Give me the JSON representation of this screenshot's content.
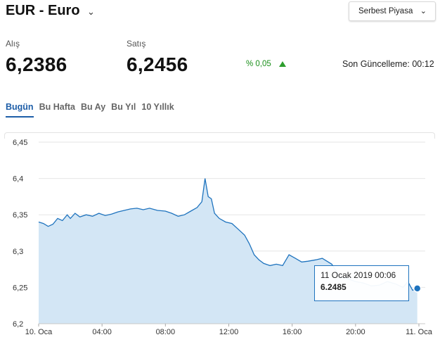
{
  "header": {
    "title": "EUR - Euro",
    "market_label": "Serbest Piyasa"
  },
  "prices": {
    "buy_label": "Alış",
    "buy_value": "6,2386",
    "sell_label": "Satış",
    "sell_value": "6,2456",
    "change": "% 0,05",
    "updated": "Son Güncelleme: 00:12"
  },
  "tabs": [
    {
      "label": "Bugün",
      "active": true
    },
    {
      "label": "Bu Hafta",
      "active": false
    },
    {
      "label": "Bu Ay",
      "active": false
    },
    {
      "label": "Bu Yıl",
      "active": false
    },
    {
      "label": "10 Yıllık",
      "active": false
    }
  ],
  "tooltip": {
    "date": "11 Ocak 2019 00:06",
    "value": "6.2485"
  },
  "colors": {
    "accent": "#1e73be",
    "fill": "#d3e6f5",
    "up": "#2e9e2e"
  },
  "chart_data": {
    "type": "line",
    "x_unit": "hours since 10 Oca 00:00",
    "xlim": [
      0,
      24
    ],
    "ylim": [
      6.2,
      6.45
    ],
    "y_ticks": [
      "6,45",
      "6,4",
      "6,35",
      "6,3",
      "6,25",
      "6,2"
    ],
    "y_tick_values": [
      6.45,
      6.4,
      6.35,
      6.3,
      6.25,
      6.2
    ],
    "x_ticks": [
      "10. Oca",
      "04:00",
      "08:00",
      "12:00",
      "16:00",
      "20:00",
      "11. Oca"
    ],
    "x_tick_values": [
      0,
      4,
      8,
      12,
      16,
      20,
      24
    ],
    "grid": true,
    "series": [
      {
        "name": "EUR",
        "points": [
          [
            0.0,
            6.34
          ],
          [
            0.3,
            6.338
          ],
          [
            0.6,
            6.334
          ],
          [
            0.9,
            6.337
          ],
          [
            1.2,
            6.345
          ],
          [
            1.5,
            6.342
          ],
          [
            1.8,
            6.35
          ],
          [
            2.0,
            6.345
          ],
          [
            2.3,
            6.352
          ],
          [
            2.6,
            6.347
          ],
          [
            3.0,
            6.35
          ],
          [
            3.4,
            6.348
          ],
          [
            3.8,
            6.352
          ],
          [
            4.2,
            6.349
          ],
          [
            4.6,
            6.351
          ],
          [
            5.0,
            6.354
          ],
          [
            5.4,
            6.356
          ],
          [
            5.8,
            6.358
          ],
          [
            6.2,
            6.359
          ],
          [
            6.6,
            6.357
          ],
          [
            7.0,
            6.359
          ],
          [
            7.5,
            6.356
          ],
          [
            8.0,
            6.355
          ],
          [
            8.4,
            6.352
          ],
          [
            8.8,
            6.348
          ],
          [
            9.2,
            6.35
          ],
          [
            9.6,
            6.355
          ],
          [
            10.0,
            6.36
          ],
          [
            10.3,
            6.368
          ],
          [
            10.5,
            6.4
          ],
          [
            10.7,
            6.375
          ],
          [
            10.9,
            6.372
          ],
          [
            11.1,
            6.352
          ],
          [
            11.4,
            6.345
          ],
          [
            11.8,
            6.34
          ],
          [
            12.2,
            6.338
          ],
          [
            12.6,
            6.33
          ],
          [
            13.0,
            6.322
          ],
          [
            13.3,
            6.31
          ],
          [
            13.6,
            6.295
          ],
          [
            13.9,
            6.288
          ],
          [
            14.2,
            6.283
          ],
          [
            14.6,
            6.28
          ],
          [
            15.0,
            6.282
          ],
          [
            15.4,
            6.28
          ],
          [
            15.8,
            6.295
          ],
          [
            16.2,
            6.29
          ],
          [
            16.6,
            6.285
          ],
          [
            17.0,
            6.286
          ],
          [
            17.5,
            6.288
          ],
          [
            17.9,
            6.29
          ],
          [
            18.5,
            6.282
          ],
          [
            19.0,
            6.265
          ],
          [
            19.5,
            6.262
          ],
          [
            20.0,
            6.258
          ],
          [
            20.5,
            6.256
          ],
          [
            21.0,
            6.252
          ],
          [
            21.5,
            6.253
          ],
          [
            22.0,
            6.258
          ],
          [
            22.5,
            6.255
          ],
          [
            23.0,
            6.25
          ],
          [
            23.3,
            6.258
          ],
          [
            23.6,
            6.246
          ],
          [
            23.9,
            6.2485
          ]
        ]
      }
    ]
  }
}
